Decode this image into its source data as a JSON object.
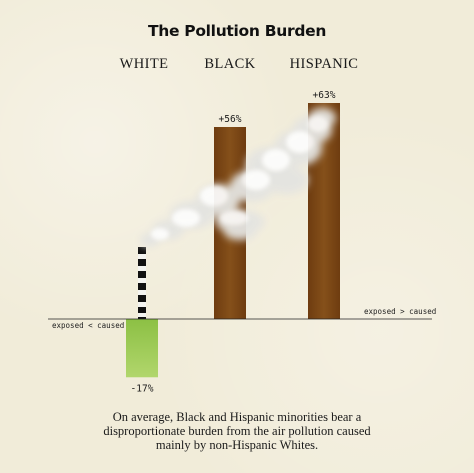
{
  "chart_data": {
    "type": "bar",
    "title": "The Pollution Burden",
    "categories": [
      "WHITE",
      "BLACK",
      "HISPANIC"
    ],
    "values": [
      -17,
      56,
      63
    ],
    "value_labels": [
      "-17%",
      "+56%",
      "+63%"
    ],
    "unit": "%",
    "ylim": [
      -20,
      70
    ],
    "axis_left_label": "exposed < caused",
    "axis_right_label": "exposed > caused",
    "legend": "none",
    "grid": false
  },
  "caption": [
    "On average, Black and Hispanic minorities bear a",
    "disproportionate burden from the air pollution caused",
    "mainly by non-Hispanic Whites."
  ],
  "colors": {
    "background": "#f1ecd9",
    "negative_bar": "#9ccb4f",
    "positive_bar": "#7a4513",
    "smoke": "#eeeeec"
  },
  "icons": [
    "smokestack-icon",
    "smoke-plume-icon"
  ]
}
